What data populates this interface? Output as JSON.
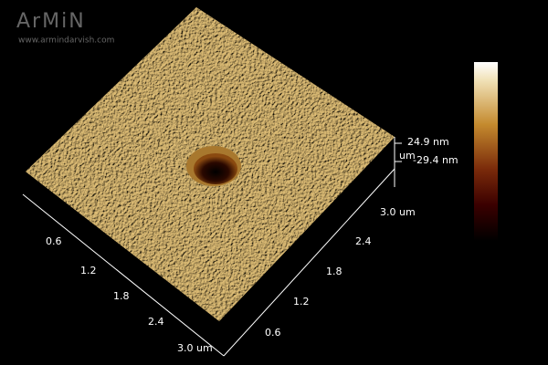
{
  "watermark": {
    "logo": "ArMiN",
    "url": "www.armindarvish.com"
  },
  "x_axis": {
    "ticks": [
      "0.6",
      "1.2",
      "1.8",
      "2.4",
      "3.0 um"
    ]
  },
  "y_axis": {
    "ticks": [
      "0.6",
      "1.2",
      "1.8",
      "2.4",
      "3.0 um"
    ]
  },
  "z_axis": {
    "max": "24.9 nm",
    "unit": "um",
    "min": "-29.4 nm"
  }
}
